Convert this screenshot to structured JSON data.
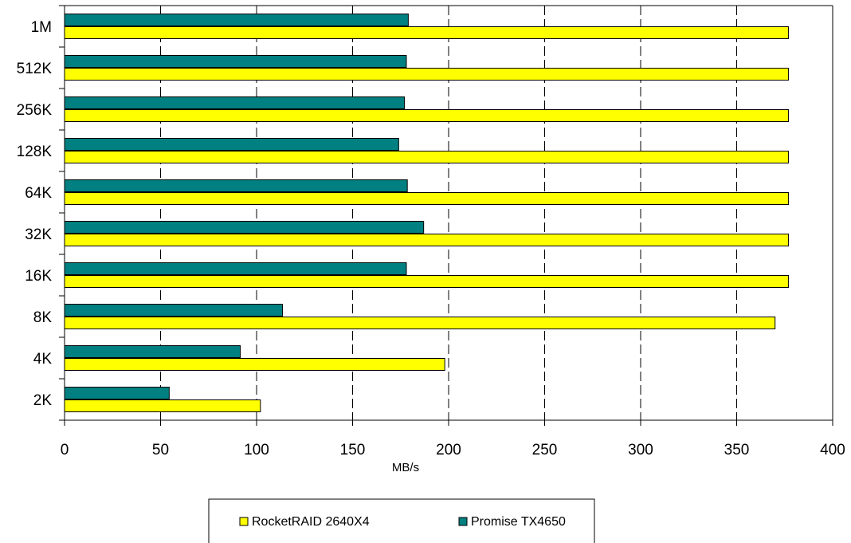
{
  "chart_data": {
    "type": "bar",
    "orientation": "horizontal",
    "title": "",
    "xlabel": "MB/s",
    "ylabel": "",
    "categories": [
      "1M",
      "512K",
      "256K",
      "128K",
      "64K",
      "32K",
      "16K",
      "8K",
      "4K",
      "2K"
    ],
    "xlim": [
      0,
      400
    ],
    "xticks": [
      0,
      50,
      100,
      150,
      200,
      250,
      300,
      350,
      400
    ],
    "grid": "vertical dashed",
    "legend_position": "bottom",
    "series": [
      {
        "name": "Promise TX4650",
        "color": "#008080",
        "values": [
          179,
          178,
          177,
          174,
          178.5,
          187,
          178,
          113.5,
          91.5,
          54.5
        ]
      },
      {
        "name": "RocketRAID 2640X4",
        "color": "#ffff00",
        "values": [
          377,
          377,
          377,
          377,
          377,
          377,
          377,
          370,
          198,
          102
        ]
      }
    ]
  }
}
